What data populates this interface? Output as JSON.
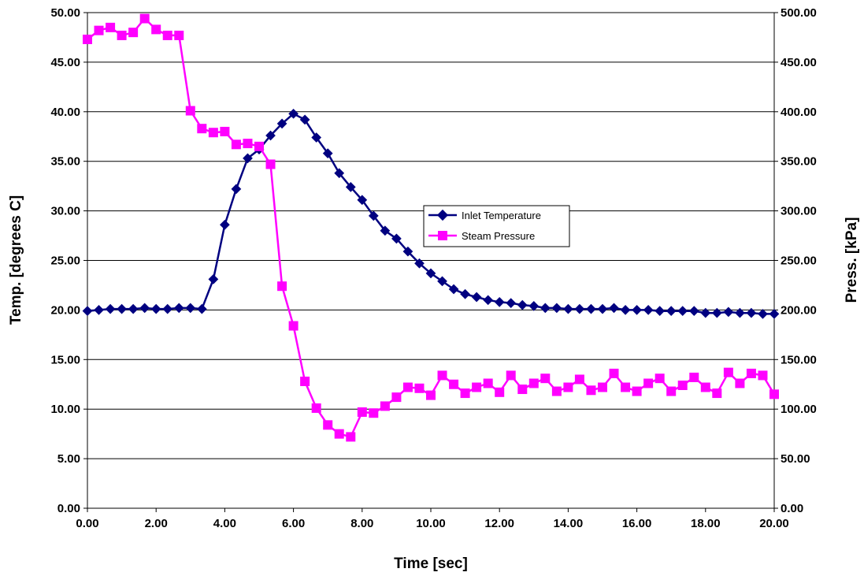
{
  "chart_data": {
    "type": "line",
    "title": "",
    "xlabel": "Time [sec]",
    "ylabel_left": "Temp. [degrees C]",
    "ylabel_right": "Press. [kPa]",
    "xlim": [
      0,
      20
    ],
    "ylim_left": [
      0,
      50
    ],
    "ylim_right": [
      0,
      500
    ],
    "x_ticks": [
      "0.00",
      "2.00",
      "4.00",
      "6.00",
      "8.00",
      "10.00",
      "12.00",
      "14.00",
      "16.00",
      "18.00",
      "20.00"
    ],
    "y_left_ticks": [
      "0.00",
      "5.00",
      "10.00",
      "15.00",
      "20.00",
      "25.00",
      "30.00",
      "35.00",
      "40.00",
      "45.00",
      "50.00"
    ],
    "y_right_ticks": [
      "0.00",
      "50.00",
      "100.00",
      "150.00",
      "200.00",
      "250.00",
      "300.00",
      "350.00",
      "400.00",
      "450.00",
      "500.00"
    ],
    "grid": "horizontal",
    "legend_position": "center-right",
    "series": [
      {
        "name": "Inlet Temperature",
        "axis": "left",
        "color": "#000080",
        "marker": "diamond",
        "x": [
          0,
          0.333,
          0.667,
          1,
          1.333,
          1.667,
          2,
          2.333,
          2.667,
          3,
          3.333,
          3.667,
          4,
          4.333,
          4.667,
          5,
          5.333,
          5.667,
          6,
          6.333,
          6.667,
          7,
          7.333,
          7.667,
          8,
          8.333,
          8.667,
          9,
          9.333,
          9.667,
          10,
          10.333,
          10.667,
          11,
          11.333,
          11.667,
          12,
          12.333,
          12.667,
          13,
          13.333,
          13.667,
          14,
          14.333,
          14.667,
          15,
          15.333,
          15.667,
          16,
          16.333,
          16.667,
          17,
          17.333,
          17.667,
          18,
          18.333,
          18.667,
          19,
          19.333,
          19.667,
          20
        ],
        "values": [
          19.9,
          20.0,
          20.1,
          20.1,
          20.1,
          20.2,
          20.1,
          20.1,
          20.2,
          20.2,
          20.1,
          23.1,
          28.6,
          32.2,
          35.3,
          36.2,
          37.6,
          38.8,
          39.8,
          39.2,
          37.4,
          35.8,
          33.8,
          32.4,
          31.1,
          29.5,
          28.0,
          27.2,
          25.9,
          24.7,
          23.7,
          22.9,
          22.1,
          21.6,
          21.3,
          21.0,
          20.8,
          20.7,
          20.5,
          20.4,
          20.2,
          20.2,
          20.1,
          20.1,
          20.1,
          20.1,
          20.2,
          20.0,
          20.0,
          20.0,
          19.9,
          19.9,
          19.9,
          19.9,
          19.7,
          19.7,
          19.8,
          19.7,
          19.7,
          19.6,
          19.6
        ]
      },
      {
        "name": "Steam Pressure",
        "axis": "right",
        "color": "#FF00FF",
        "marker": "square",
        "x": [
          0,
          0.333,
          0.667,
          1,
          1.333,
          1.667,
          2,
          2.333,
          2.667,
          3,
          3.333,
          3.667,
          4,
          4.333,
          4.667,
          5,
          5.333,
          5.667,
          6,
          6.333,
          6.667,
          7,
          7.333,
          7.667,
          8,
          8.333,
          8.667,
          9,
          9.333,
          9.667,
          10,
          10.333,
          10.667,
          11,
          11.333,
          11.667,
          12,
          12.333,
          12.667,
          13,
          13.333,
          13.667,
          14,
          14.333,
          14.667,
          15,
          15.333,
          15.667,
          16,
          16.333,
          16.667,
          17,
          17.333,
          17.667,
          18,
          18.333,
          18.667,
          19,
          19.333,
          19.667,
          20
        ],
        "values": [
          473,
          482,
          485,
          477,
          480,
          494,
          483,
          477,
          477,
          401,
          383,
          379,
          380,
          367,
          368,
          365,
          347,
          224,
          184,
          128,
          101,
          84,
          75,
          72,
          97,
          96,
          103,
          112,
          122,
          121,
          114,
          134,
          125,
          116,
          122,
          126,
          117,
          134,
          120,
          126,
          131,
          118,
          122,
          130,
          119,
          122,
          136,
          122,
          118,
          126,
          131,
          118,
          124,
          132,
          122,
          116,
          137,
          126,
          136,
          134,
          115
        ]
      }
    ]
  }
}
